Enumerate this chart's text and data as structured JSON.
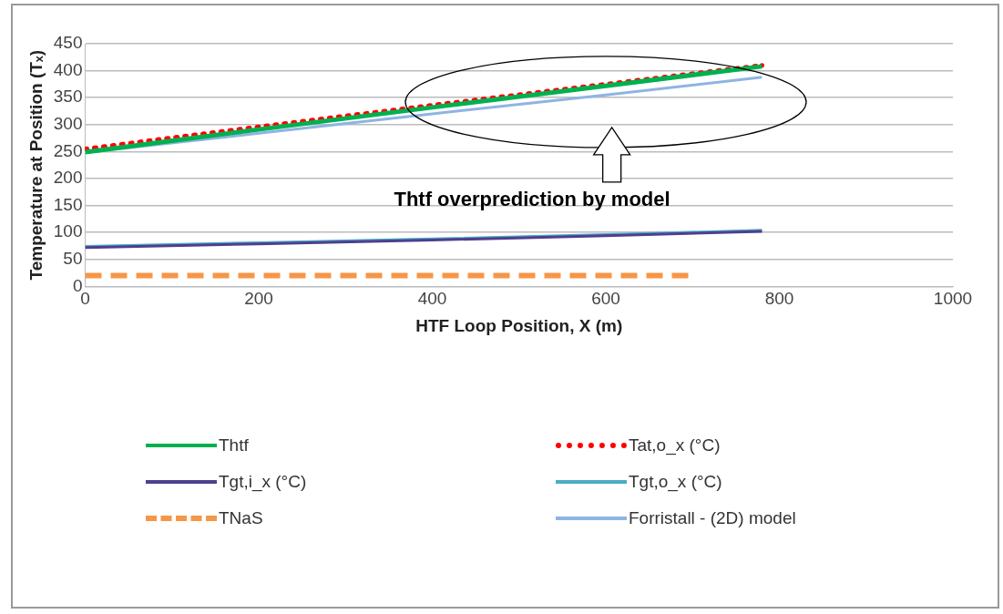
{
  "chart_data": {
    "type": "line",
    "xlabel": "HTF Loop Position, X (m)",
    "ylabel": "Temperature at Position (Tₓ)",
    "xlim": [
      0,
      1000
    ],
    "xticks": [
      0,
      200,
      400,
      600,
      800,
      1000
    ],
    "ylim": [
      0,
      450
    ],
    "yticks": [
      0,
      50,
      100,
      150,
      200,
      250,
      300,
      350,
      400,
      450
    ],
    "grid": "y",
    "legend": "bottom",
    "marker": "none",
    "annotations": [
      "Thtf overprediction by model"
    ],
    "series": [
      {
        "name": "Thtf",
        "color": "#00b050",
        "line_style": "solid",
        "x": [
          0,
          200,
          400,
          600,
          780
        ],
        "values": [
          249,
          291,
          332,
          372,
          408
        ]
      },
      {
        "name": "Tat,o_x (°C)",
        "color": "#ff0000",
        "line_style": "dotted",
        "x": [
          0,
          200,
          400,
          600,
          780
        ],
        "values": [
          255,
          296,
          336,
          375,
          410
        ]
      },
      {
        "name": "Tgt,i_x (°C)",
        "color": "#4f3f8f",
        "line_style": "solid",
        "x": [
          0,
          200,
          400,
          600,
          780
        ],
        "values": [
          72,
          79,
          86,
          94,
          102
        ]
      },
      {
        "name": "Tgt,o_x (°C)",
        "color": "#4bacc6",
        "line_style": "solid",
        "x": [
          0,
          200,
          400,
          600,
          780
        ],
        "values": [
          74,
          81,
          88,
          96,
          104
        ]
      },
      {
        "name": "TNaS",
        "color": "#f79646",
        "line_style": "dashed",
        "x": [
          0,
          700
        ],
        "values": [
          20,
          20
        ]
      },
      {
        "name": "Forristall - (2D) model",
        "color": "#8eb4e3",
        "line_style": "solid",
        "x": [
          0,
          200,
          400,
          600,
          780
        ],
        "values": [
          248,
          284,
          320,
          355,
          388
        ]
      }
    ]
  }
}
